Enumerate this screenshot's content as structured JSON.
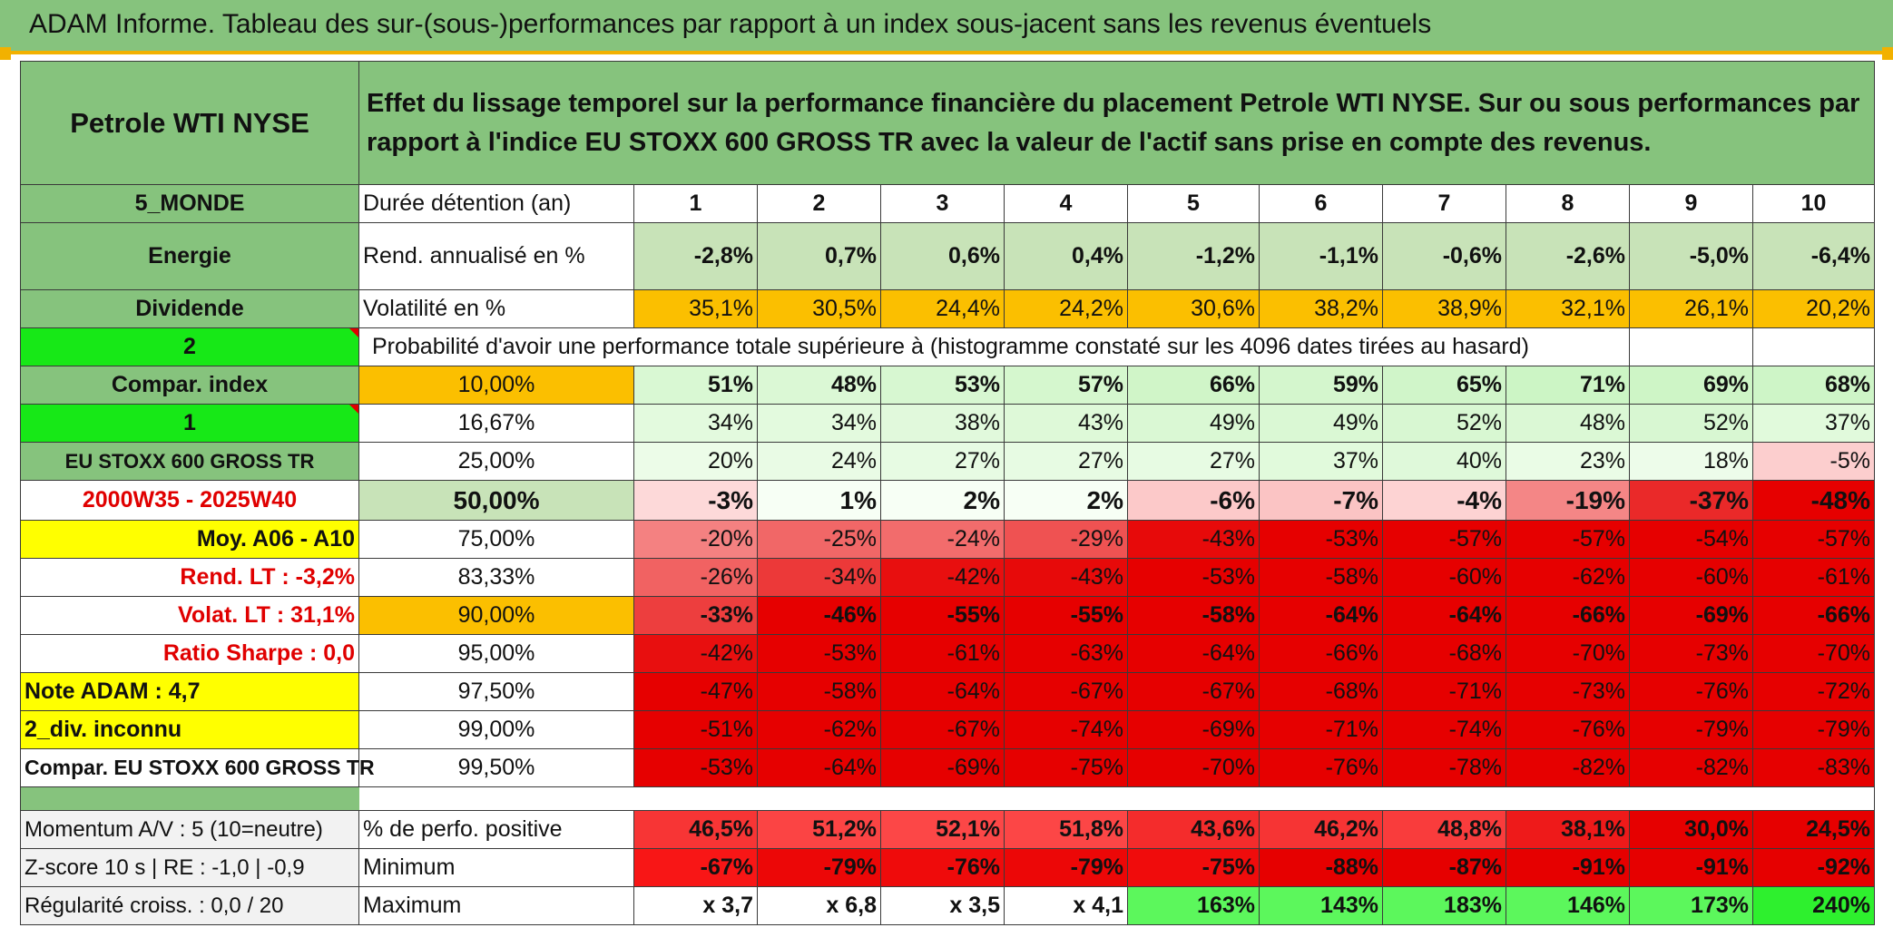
{
  "title": "ADAM Informe. Tableau des sur-(sous-)performances par rapport à un index sous-jacent sans les revenus éventuels",
  "asset_name": "Petrole WTI NYSE",
  "description": "Effet du lissage temporel sur la performance financière du placement Petrole WTI NYSE. Sur ou sous performances par rapport à l'indice EU STOXX 600 GROSS TR avec la valeur de l'actif sans prise en compte des revenus.",
  "left": {
    "zone": "5_MONDE",
    "sector": "Energie",
    "dividend": "Dividende",
    "dividend_code": "2",
    "compar_index_label": "Compar. index",
    "compar_index_code": "1",
    "index_name": "EU STOXX 600 GROSS TR",
    "period": "2000W35 - 2025W40",
    "moy": "Moy. A06 - A10",
    "rend_lt": "Rend. LT :   -3,2%",
    "volat_lt": "Volat. LT :   31,1%",
    "sharpe": "Ratio Sharpe :    0,0",
    "note": "Note ADAM : 4,7",
    "div_unknown": "2_div. inconnu",
    "compar": "Compar. EU STOXX 600 GROSS TR",
    "momentum": "Momentum A/V : 5 (10=neutre)",
    "zscore": "Z-score 10 s | RE : -1,0 | -0,9",
    "regularite": "Régularité croiss. : 0,0 / 20"
  },
  "labels": {
    "duree": "Durée détention (an)",
    "rend": "Rend. annualisé en %",
    "volat": "Volatilité en %",
    "proba": "Probabilité d'avoir une performance totale supérieure à (histogramme constaté sur les 4096 dates tirées au hasard)",
    "positive": "% de perfo. positive",
    "minimum": "Minimum",
    "maximum": "Maximum"
  },
  "years": [
    "1",
    "2",
    "3",
    "4",
    "5",
    "6",
    "7",
    "8",
    "9",
    "10"
  ],
  "rend": [
    "-2,8%",
    "0,7%",
    "0,6%",
    "0,4%",
    "-1,2%",
    "-1,1%",
    "-0,6%",
    "-2,6%",
    "-5,0%",
    "-6,4%"
  ],
  "volat": [
    "35,1%",
    "30,5%",
    "24,4%",
    "24,2%",
    "30,6%",
    "38,2%",
    "38,9%",
    "32,1%",
    "26,1%",
    "20,2%"
  ],
  "prob_rows": [
    {
      "p": "10,00%",
      "v": [
        "51%",
        "48%",
        "53%",
        "57%",
        "66%",
        "59%",
        "65%",
        "71%",
        "69%",
        "68%"
      ]
    },
    {
      "p": "16,67%",
      "v": [
        "34%",
        "34%",
        "38%",
        "43%",
        "49%",
        "49%",
        "52%",
        "48%",
        "52%",
        "37%"
      ]
    },
    {
      "p": "25,00%",
      "v": [
        "20%",
        "24%",
        "27%",
        "27%",
        "27%",
        "37%",
        "40%",
        "23%",
        "18%",
        "-5%"
      ]
    },
    {
      "p": "50,00%",
      "v": [
        "-3%",
        "1%",
        "2%",
        "2%",
        "-6%",
        "-7%",
        "-4%",
        "-19%",
        "-37%",
        "-48%"
      ]
    },
    {
      "p": "75,00%",
      "v": [
        "-20%",
        "-25%",
        "-24%",
        "-29%",
        "-43%",
        "-53%",
        "-57%",
        "-57%",
        "-54%",
        "-57%"
      ]
    },
    {
      "p": "83,33%",
      "v": [
        "-26%",
        "-34%",
        "-42%",
        "-43%",
        "-53%",
        "-58%",
        "-60%",
        "-62%",
        "-60%",
        "-61%"
      ]
    },
    {
      "p": "90,00%",
      "v": [
        "-33%",
        "-46%",
        "-55%",
        "-55%",
        "-58%",
        "-64%",
        "-64%",
        "-66%",
        "-69%",
        "-66%"
      ]
    },
    {
      "p": "95,00%",
      "v": [
        "-42%",
        "-53%",
        "-61%",
        "-63%",
        "-64%",
        "-66%",
        "-68%",
        "-70%",
        "-73%",
        "-70%"
      ]
    },
    {
      "p": "97,50%",
      "v": [
        "-47%",
        "-58%",
        "-64%",
        "-67%",
        "-67%",
        "-68%",
        "-71%",
        "-73%",
        "-76%",
        "-72%"
      ]
    },
    {
      "p": "99,00%",
      "v": [
        "-51%",
        "-62%",
        "-67%",
        "-74%",
        "-69%",
        "-71%",
        "-74%",
        "-76%",
        "-79%",
        "-79%"
      ]
    },
    {
      "p": "99,50%",
      "v": [
        "-53%",
        "-64%",
        "-69%",
        "-75%",
        "-70%",
        "-76%",
        "-78%",
        "-82%",
        "-82%",
        "-83%"
      ]
    }
  ],
  "positive": [
    "46,5%",
    "51,2%",
    "52,1%",
    "51,8%",
    "43,6%",
    "46,2%",
    "48,8%",
    "38,1%",
    "30,0%",
    "24,5%"
  ],
  "minimum": [
    "-67%",
    "-79%",
    "-76%",
    "-79%",
    "-75%",
    "-88%",
    "-87%",
    "-91%",
    "-91%",
    "-92%"
  ],
  "maximum": [
    "x 3,7",
    "x 6,8",
    "x 3,5",
    "x 4,1",
    "163%",
    "143%",
    "183%",
    "146%",
    "173%",
    "240%"
  ],
  "colors": {
    "header_green": "#86c37d",
    "light_green": "#c8e3b8",
    "orange": "#fbbf00",
    "bright_green": "#17e817",
    "yellow": "#ffff00",
    "red": "#e00000",
    "max_green": "#5cf75c",
    "max_green_strong": "#2ef02e"
  }
}
